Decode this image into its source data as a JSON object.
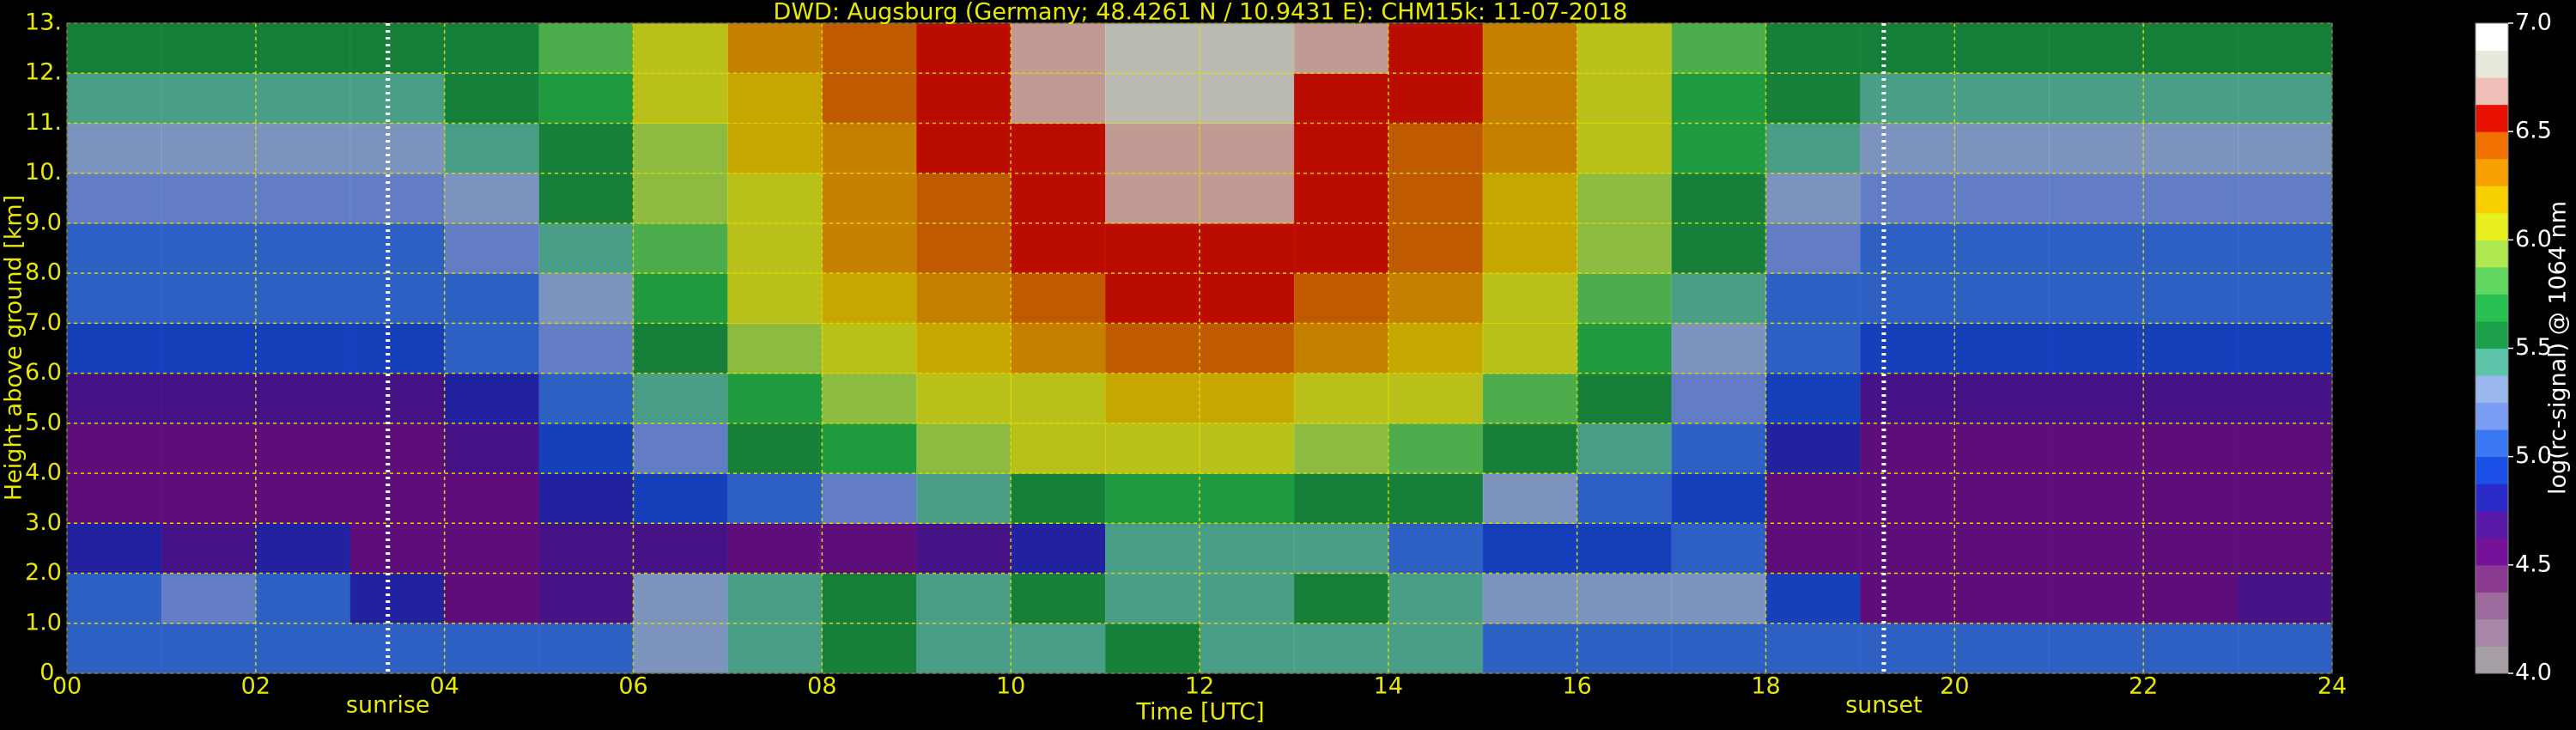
{
  "chart_data": {
    "type": "heatmap",
    "title": "DWD: Augsburg (Germany; 48.4261 N / 10.9431 E):    CHM15k: 11-07-2018",
    "xlabel": "Time [UTC]",
    "ylabel": "Height above ground [km]",
    "colorbar_label": "log(rc-signal) @ 1064 nm",
    "xlim": [
      0,
      24
    ],
    "xticks": [
      {
        "value": 0,
        "label": "00"
      },
      {
        "value": 2,
        "label": "02"
      },
      {
        "value": 4,
        "label": "04"
      },
      {
        "value": 6,
        "label": "06"
      },
      {
        "value": 8,
        "label": "08"
      },
      10,
      12,
      14,
      16,
      18,
      20,
      22,
      24
    ],
    "ylim": [
      0,
      13
    ],
    "yticks": [
      {
        "value": 0,
        "label": "0."
      },
      {
        "value": 1,
        "label": "1.0"
      },
      {
        "value": 2,
        "label": "2.0"
      },
      {
        "value": 3,
        "label": "3.0"
      },
      {
        "value": 4,
        "label": "4.0"
      },
      {
        "value": 5,
        "label": "5.0"
      },
      {
        "value": 6,
        "label": "6.0"
      },
      {
        "value": 7,
        "label": "7.0"
      },
      {
        "value": 8,
        "label": "8.0"
      },
      {
        "value": 9,
        "label": "9.0"
      },
      {
        "value": 10,
        "label": "10."
      },
      {
        "value": 11,
        "label": "11."
      },
      {
        "value": 12,
        "label": "12."
      },
      {
        "value": 13,
        "label": "13."
      }
    ],
    "zlim": [
      4,
      7
    ],
    "zticks": [
      {
        "value": 4,
        "label": "4.0"
      },
      {
        "value": 4.5,
        "label": "4.5"
      },
      {
        "value": 5,
        "label": "5.0"
      },
      {
        "value": 5.5,
        "label": "5.5"
      },
      {
        "value": 6,
        "label": "6.0"
      },
      {
        "value": 6.5,
        "label": "6.5"
      },
      {
        "value": 7,
        "label": "7.0"
      }
    ],
    "colormap": [
      "#a6a0a6",
      "#a888a8",
      "#9c6a9c",
      "#8a3a90",
      "#76129a",
      "#5818a8",
      "#2a2ac8",
      "#1a50e8",
      "#3a78f4",
      "#7a9cf4",
      "#9ab8ec",
      "#5cc4a8",
      "#1ca04a",
      "#28c050",
      "#60d860",
      "#b0e850",
      "#e8f020",
      "#f8d000",
      "#f8a000",
      "#f07000",
      "#e81000",
      "#f0c0b8",
      "#e8e8dc",
      "#ffffff"
    ],
    "grid": true,
    "grid_color": "#d8d800",
    "xbins": [
      0,
      1,
      2,
      3,
      4,
      5,
      6,
      7,
      8,
      9,
      10,
      11,
      12,
      13,
      14,
      15,
      16,
      17,
      18,
      19,
      20,
      21,
      22,
      23,
      24
    ],
    "ybins": [
      0,
      1,
      2,
      3,
      4,
      5,
      6,
      7,
      8,
      9,
      10,
      11,
      12,
      13
    ],
    "z": [
      [
        5.0,
        5.0,
        5.0,
        5.0,
        5.0,
        5.1,
        5.3,
        5.4,
        5.5,
        5.4,
        5.4,
        5.5,
        5.4,
        5.4,
        5.4,
        5.1,
        5.0,
        5.0,
        5.0,
        5.0,
        5.0,
        5.0,
        5.0,
        5.0
      ],
      [
        5.0,
        5.2,
        5.0,
        4.8,
        4.6,
        4.7,
        5.3,
        5.4,
        5.5,
        5.4,
        5.5,
        5.4,
        5.4,
        5.5,
        5.4,
        5.3,
        5.3,
        5.3,
        4.9,
        4.6,
        4.6,
        4.6,
        4.6,
        4.7
      ],
      [
        4.8,
        4.7,
        4.8,
        4.6,
        4.6,
        4.7,
        4.7,
        4.6,
        4.6,
        4.7,
        4.8,
        5.4,
        5.4,
        5.4,
        5.0,
        4.9,
        4.9,
        5.0,
        4.6,
        4.6,
        4.6,
        4.5,
        4.5,
        4.6
      ],
      [
        4.6,
        4.6,
        4.6,
        4.5,
        4.6,
        4.8,
        4.9,
        5.0,
        5.2,
        5.4,
        5.6,
        5.7,
        5.7,
        5.6,
        5.5,
        5.3,
        5.0,
        4.9,
        4.6,
        4.5,
        4.5,
        4.5,
        4.5,
        4.5
      ],
      [
        4.6,
        4.6,
        4.6,
        4.6,
        4.7,
        4.9,
        5.2,
        5.5,
        5.7,
        5.9,
        6.0,
        6.0,
        6.0,
        5.9,
        5.8,
        5.6,
        5.4,
        5.1,
        4.8,
        4.6,
        4.6,
        4.6,
        4.6,
        4.6
      ],
      [
        4.7,
        4.7,
        4.7,
        4.7,
        4.8,
        5.0,
        5.4,
        5.7,
        5.9,
        6.0,
        6.1,
        6.2,
        6.2,
        6.1,
        6.0,
        5.8,
        5.5,
        5.2,
        4.9,
        4.7,
        4.7,
        4.7,
        4.7,
        4.7
      ],
      [
        4.9,
        4.9,
        4.9,
        4.9,
        5.0,
        5.2,
        5.6,
        5.9,
        6.1,
        6.2,
        6.3,
        6.4,
        6.4,
        6.3,
        6.2,
        6.0,
        5.7,
        5.3,
        5.0,
        4.9,
        4.9,
        4.9,
        4.9,
        4.9
      ],
      [
        5.0,
        5.0,
        5.0,
        5.0,
        5.1,
        5.3,
        5.7,
        6.0,
        6.2,
        6.3,
        6.4,
        6.5,
        6.5,
        6.4,
        6.3,
        6.1,
        5.8,
        5.4,
        5.1,
        5.0,
        5.0,
        5.0,
        5.0,
        5.0
      ],
      [
        5.1,
        5.1,
        5.1,
        5.1,
        5.2,
        5.4,
        5.8,
        6.1,
        6.3,
        6.4,
        6.5,
        6.6,
        6.6,
        6.5,
        6.4,
        6.2,
        5.9,
        5.5,
        5.2,
        5.1,
        5.1,
        5.1,
        5.1,
        5.1
      ],
      [
        5.2,
        5.2,
        5.2,
        5.2,
        5.3,
        5.5,
        5.9,
        6.1,
        6.3,
        6.4,
        6.6,
        6.7,
        6.7,
        6.5,
        6.4,
        6.2,
        5.9,
        5.6,
        5.3,
        5.2,
        5.2,
        5.2,
        5.2,
        5.2
      ],
      [
        5.3,
        5.3,
        5.3,
        5.3,
        5.4,
        5.6,
        5.9,
        6.2,
        6.3,
        6.5,
        6.6,
        6.7,
        6.7,
        6.6,
        6.4,
        6.3,
        6.0,
        5.7,
        5.4,
        5.3,
        5.3,
        5.3,
        5.3,
        5.3
      ],
      [
        5.4,
        5.4,
        5.4,
        5.4,
        5.5,
        5.7,
        6.0,
        6.2,
        6.4,
        6.5,
        6.7,
        6.8,
        6.8,
        6.6,
        6.5,
        6.3,
        6.0,
        5.7,
        5.5,
        5.4,
        5.4,
        5.4,
        5.4,
        5.4
      ],
      [
        5.5,
        5.5,
        5.5,
        5.5,
        5.6,
        5.8,
        6.0,
        6.3,
        6.4,
        6.6,
        6.7,
        6.8,
        6.8,
        6.7,
        6.5,
        6.3,
        6.1,
        5.8,
        5.5,
        5.5,
        5.5,
        5.5,
        5.5,
        5.5
      ]
    ],
    "annotations": [
      {
        "x": 3.4,
        "label": "sunrise"
      },
      {
        "x": 19.25,
        "label": "sunset"
      }
    ]
  }
}
